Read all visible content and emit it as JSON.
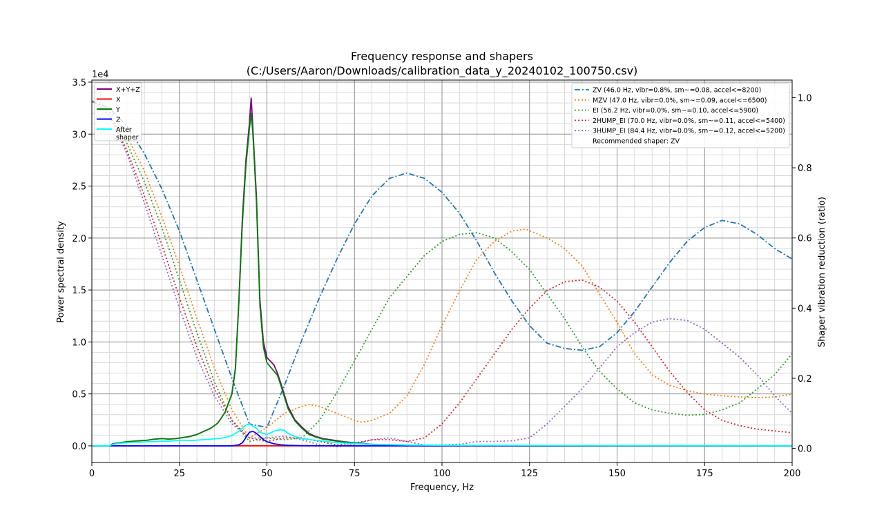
{
  "chart_data": {
    "type": "line",
    "title": "Frequency response and shapers",
    "subtitle": "(C:/Users/Aaron/Downloads/calibration_data_y_20240102_100750.csv)",
    "xlabel": "Frequency, Hz",
    "ylabel": "Power spectral density",
    "y2label": "Shaper vibration reduction (ratio)",
    "y_offset_label": "1e4",
    "xlim": [
      0,
      200
    ],
    "ylim": [
      -1600,
      35200
    ],
    "y2lim": [
      -0.04,
      1.05
    ],
    "x_ticks": [
      0,
      25,
      50,
      75,
      100,
      125,
      150,
      175,
      200
    ],
    "x_tick_labels": [
      "0",
      "25",
      "50",
      "75",
      "100",
      "125",
      "150",
      "175",
      "200"
    ],
    "y_ticks": [
      0,
      5000,
      10000,
      15000,
      20000,
      25000,
      30000,
      35000
    ],
    "y_tick_labels": [
      "0.0",
      "0.5",
      "1.0",
      "1.5",
      "2.0",
      "2.5",
      "3.0",
      "3.5"
    ],
    "y2_ticks": [
      0,
      0.2,
      0.4,
      0.6,
      0.8,
      1.0
    ],
    "y2_tick_labels": [
      "0.0",
      "0.2",
      "0.4",
      "0.6",
      "0.8",
      "1.0"
    ],
    "grid": true,
    "psd_legend_placement": "top-left",
    "shaper_legend_placement": "top-right",
    "recommended_text": "Recommended shaper: ZV",
    "psd_series": [
      {
        "name": "X+Y+Z",
        "color": "#800080",
        "x": [
          0,
          5,
          6,
          8,
          10,
          12,
          14,
          16,
          18,
          20,
          22,
          24,
          26,
          28,
          30,
          32,
          34,
          36,
          38,
          40,
          41,
          42,
          43,
          44,
          45,
          45.5,
          46,
          47,
          48,
          49,
          50,
          52,
          53,
          54,
          56,
          58,
          60,
          62,
          64,
          66,
          68,
          70,
          72,
          75,
          80,
          85,
          90,
          100,
          120,
          150,
          200
        ],
        "y": [
          0,
          0,
          200,
          300,
          400,
          450,
          500,
          550,
          650,
          700,
          650,
          700,
          800,
          900,
          1100,
          1400,
          1700,
          2200,
          3200,
          5000,
          7500,
          14000,
          22000,
          27500,
          31000,
          33500,
          30500,
          24000,
          14000,
          10000,
          8500,
          7800,
          7000,
          6000,
          3800,
          2500,
          1800,
          1200,
          900,
          700,
          600,
          500,
          400,
          300,
          150,
          100,
          50,
          20,
          10,
          0,
          0
        ]
      },
      {
        "name": "X",
        "color": "#ff0000",
        "x": [
          0,
          50,
          100,
          150,
          200
        ],
        "y": [
          0,
          0,
          0,
          0,
          0
        ]
      },
      {
        "name": "Y",
        "color": "#008000",
        "x": [
          0,
          5,
          6,
          8,
          10,
          12,
          14,
          16,
          18,
          20,
          22,
          24,
          26,
          28,
          30,
          32,
          34,
          36,
          38,
          40,
          41,
          42,
          43,
          44,
          45,
          45.5,
          46,
          47,
          48,
          49,
          50,
          52,
          53,
          54,
          56,
          58,
          60,
          62,
          64,
          66,
          68,
          70,
          72,
          75,
          80,
          85,
          90,
          100,
          120,
          150,
          200
        ],
        "y": [
          0,
          0,
          200,
          300,
          400,
          450,
          500,
          550,
          650,
          700,
          650,
          700,
          800,
          900,
          1100,
          1400,
          1700,
          2200,
          3200,
          5000,
          7400,
          13800,
          21500,
          27000,
          30500,
          32000,
          30000,
          23500,
          13500,
          9500,
          8000,
          7200,
          6800,
          5800,
          3600,
          2400,
          1700,
          1100,
          850,
          650,
          550,
          450,
          380,
          280,
          140,
          90,
          40,
          15,
          5,
          0,
          0
        ]
      },
      {
        "name": "Z",
        "color": "#0000ff",
        "x": [
          0,
          40,
          42,
          43,
          44,
          45,
          46,
          47,
          48,
          49,
          50,
          52,
          54,
          56,
          60,
          70,
          80,
          100,
          150,
          200
        ],
        "y": [
          0,
          0,
          100,
          300,
          800,
          1300,
          1400,
          1200,
          900,
          600,
          400,
          200,
          100,
          50,
          20,
          0,
          0,
          0,
          0,
          0
        ]
      },
      {
        "name": "After\nshaper",
        "color": "#00ffff",
        "x": [
          0,
          5,
          6,
          8,
          10,
          12,
          14,
          16,
          18,
          20,
          22,
          24,
          26,
          28,
          30,
          32,
          34,
          36,
          38,
          40,
          42,
          44,
          45,
          46,
          47,
          48,
          50,
          52,
          53,
          54,
          55,
          56,
          58,
          60,
          65,
          70,
          80,
          90,
          100,
          150,
          200
        ],
        "y": [
          0,
          0,
          150,
          250,
          300,
          350,
          350,
          400,
          400,
          450,
          450,
          500,
          550,
          500,
          550,
          600,
          650,
          700,
          800,
          1000,
          1400,
          2000,
          2100,
          1900,
          1700,
          1300,
          1100,
          1400,
          1500,
          1550,
          1500,
          1200,
          900,
          700,
          500,
          300,
          150,
          80,
          50,
          20,
          10
        ]
      }
    ],
    "shaper_series": [
      {
        "name": "ZV (46.0 Hz, vibr=0.8%, sm~=0.08, accel<=8200)",
        "color": "#1f77b4",
        "dash": "dashdot",
        "x": [
          0,
          5,
          10,
          15,
          20,
          25,
          30,
          35,
          40,
          45,
          50,
          55,
          60,
          65,
          70,
          75,
          80,
          85,
          90,
          95,
          100,
          105,
          110,
          115,
          120,
          125,
          130,
          135,
          140,
          145,
          150,
          155,
          160,
          165,
          170,
          175,
          180,
          185,
          190,
          195,
          200
        ],
        "y": [
          0.99,
          0.97,
          0.92,
          0.84,
          0.74,
          0.62,
          0.48,
          0.34,
          0.2,
          0.07,
          0.06,
          0.18,
          0.31,
          0.43,
          0.54,
          0.64,
          0.72,
          0.77,
          0.785,
          0.77,
          0.73,
          0.67,
          0.59,
          0.5,
          0.42,
          0.35,
          0.3,
          0.285,
          0.28,
          0.29,
          0.33,
          0.39,
          0.46,
          0.53,
          0.59,
          0.63,
          0.65,
          0.64,
          0.61,
          0.57,
          0.54
        ]
      },
      {
        "name": "MZV (47.0 Hz, vibr=0.0%, sm~=0.09, accel<=6500)",
        "color": "#ff7f0e",
        "dash": "dot",
        "x": [
          0,
          5,
          10,
          15,
          20,
          25,
          30,
          35,
          40,
          45,
          50,
          55,
          60,
          62,
          65,
          70,
          75,
          77,
          80,
          85,
          90,
          95,
          100,
          105,
          110,
          115,
          120,
          124,
          130,
          135,
          140,
          145,
          150,
          155,
          160,
          165,
          170,
          175,
          180,
          185,
          190,
          195,
          200
        ],
        "y": [
          0.99,
          0.96,
          0.89,
          0.79,
          0.66,
          0.52,
          0.37,
          0.23,
          0.11,
          0.03,
          0.06,
          0.1,
          0.12,
          0.125,
          0.12,
          0.1,
          0.08,
          0.075,
          0.08,
          0.1,
          0.15,
          0.24,
          0.35,
          0.45,
          0.54,
          0.59,
          0.62,
          0.625,
          0.6,
          0.57,
          0.52,
          0.44,
          0.36,
          0.27,
          0.21,
          0.18,
          0.165,
          0.155,
          0.15,
          0.147,
          0.145,
          0.147,
          0.155
        ]
      },
      {
        "name": "EI (56.2 Hz, vibr=0.0%, sm~=0.10, accel<=5900)",
        "color": "#2ca02c",
        "dash": "dot",
        "x": [
          0,
          5,
          10,
          15,
          20,
          25,
          30,
          35,
          40,
          45,
          50,
          55,
          60,
          65,
          70,
          75,
          80,
          85,
          90,
          95,
          100,
          105,
          110,
          115,
          120,
          125,
          130,
          135,
          140,
          145,
          150,
          155,
          160,
          165,
          170,
          175,
          180,
          185,
          190,
          195,
          200
        ],
        "y": [
          0.99,
          0.95,
          0.87,
          0.76,
          0.63,
          0.48,
          0.33,
          0.19,
          0.08,
          0.02,
          0.03,
          0.025,
          0.03,
          0.08,
          0.16,
          0.25,
          0.34,
          0.43,
          0.49,
          0.55,
          0.59,
          0.61,
          0.615,
          0.6,
          0.56,
          0.51,
          0.44,
          0.37,
          0.29,
          0.22,
          0.17,
          0.13,
          0.11,
          0.1,
          0.095,
          0.097,
          0.11,
          0.13,
          0.17,
          0.21,
          0.27
        ]
      },
      {
        "name": "2HUMP_EI (70.0 Hz, vibr=0.0%, sm~=0.11, accel<=5400)",
        "color": "#d62728",
        "dash": "dot",
        "x": [
          0,
          5,
          10,
          15,
          20,
          25,
          30,
          35,
          40,
          45,
          50,
          55,
          60,
          65,
          70,
          75,
          80,
          85,
          90,
          95,
          100,
          105,
          110,
          115,
          120,
          125,
          130,
          135,
          140,
          145,
          150,
          155,
          160,
          165,
          170,
          175,
          180,
          185,
          190,
          195,
          200
        ],
        "y": [
          0.99,
          0.95,
          0.85,
          0.72,
          0.58,
          0.43,
          0.29,
          0.17,
          0.08,
          0.03,
          0.02,
          0.03,
          0.03,
          0.02,
          0.01,
          0.015,
          0.025,
          0.025,
          0.02,
          0.03,
          0.07,
          0.13,
          0.2,
          0.27,
          0.34,
          0.4,
          0.45,
          0.475,
          0.48,
          0.46,
          0.42,
          0.36,
          0.29,
          0.22,
          0.16,
          0.11,
          0.08,
          0.065,
          0.055,
          0.05,
          0.045
        ]
      },
      {
        "name": "3HUMP_EI (84.4 Hz, vibr=0.0%, sm~=0.12, accel<=5200)",
        "color": "#9467bd",
        "dash": "dot",
        "x": [
          0,
          5,
          10,
          15,
          20,
          25,
          30,
          35,
          40,
          45,
          50,
          55,
          60,
          65,
          70,
          75,
          80,
          85,
          90,
          95,
          100,
          105,
          110,
          115,
          120,
          125,
          130,
          135,
          140,
          145,
          150,
          155,
          160,
          165,
          170,
          175,
          180,
          185,
          190,
          195,
          200
        ],
        "y": [
          0.99,
          0.95,
          0.84,
          0.7,
          0.55,
          0.4,
          0.26,
          0.15,
          0.07,
          0.03,
          0.03,
          0.035,
          0.025,
          0.01,
          0.005,
          0.012,
          0.025,
          0.03,
          0.02,
          0.01,
          0.01,
          0.012,
          0.02,
          0.02,
          0.022,
          0.03,
          0.07,
          0.12,
          0.17,
          0.23,
          0.29,
          0.33,
          0.36,
          0.37,
          0.365,
          0.34,
          0.3,
          0.26,
          0.21,
          0.15,
          0.1
        ]
      }
    ]
  }
}
